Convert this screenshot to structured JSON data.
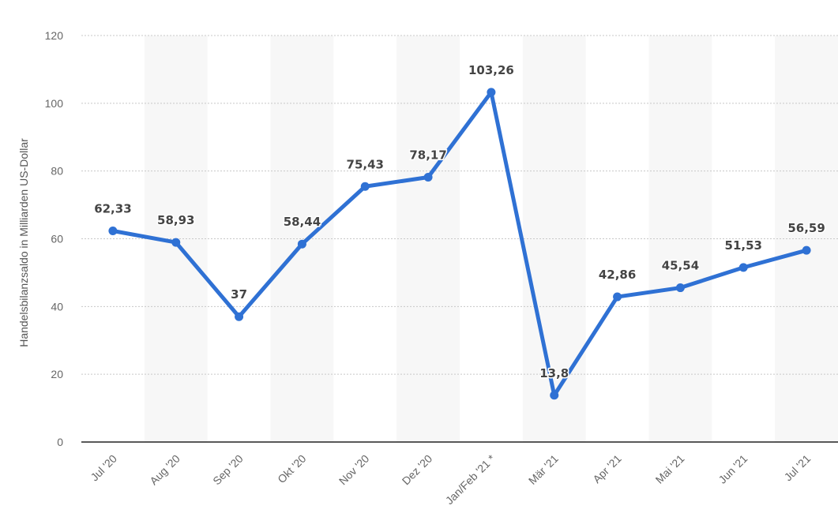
{
  "chart_data": {
    "type": "line",
    "title": "",
    "xlabel": "",
    "ylabel": "Handelsbilanzsaldo in Milliarden US-Dollar",
    "categories": [
      "Jul '20",
      "Aug '20",
      "Sep '20",
      "Okt '20",
      "Nov '20",
      "Dez '20",
      "Jan/Feb '21 *",
      "Mär '21",
      "Apr '21",
      "Mai '21",
      "Jun '21",
      "Jul '21"
    ],
    "series": [
      {
        "values": [
          62.33,
          58.93,
          37,
          58.44,
          75.43,
          78.17,
          103.26,
          13.8,
          42.86,
          45.54,
          51.53,
          56.59
        ],
        "labels": [
          "62,33",
          "58,93",
          "37",
          "58,44",
          "75,43",
          "78,17",
          "103,26",
          "13,8",
          "42,86",
          "45,54",
          "51,53",
          "56,59"
        ]
      }
    ],
    "ylim": [
      0,
      120
    ],
    "yticks": [
      0,
      20,
      40,
      60,
      80,
      100,
      120
    ],
    "ytick_labels": [
      "0",
      "20",
      "40",
      "60",
      "80",
      "100",
      "120"
    ],
    "grid": true,
    "alternating_column_shading": true,
    "colors": {
      "line": "#2f71d4",
      "grid": "#c8c8c8",
      "baseline": "#222222",
      "band": "#f7f7f7"
    }
  }
}
